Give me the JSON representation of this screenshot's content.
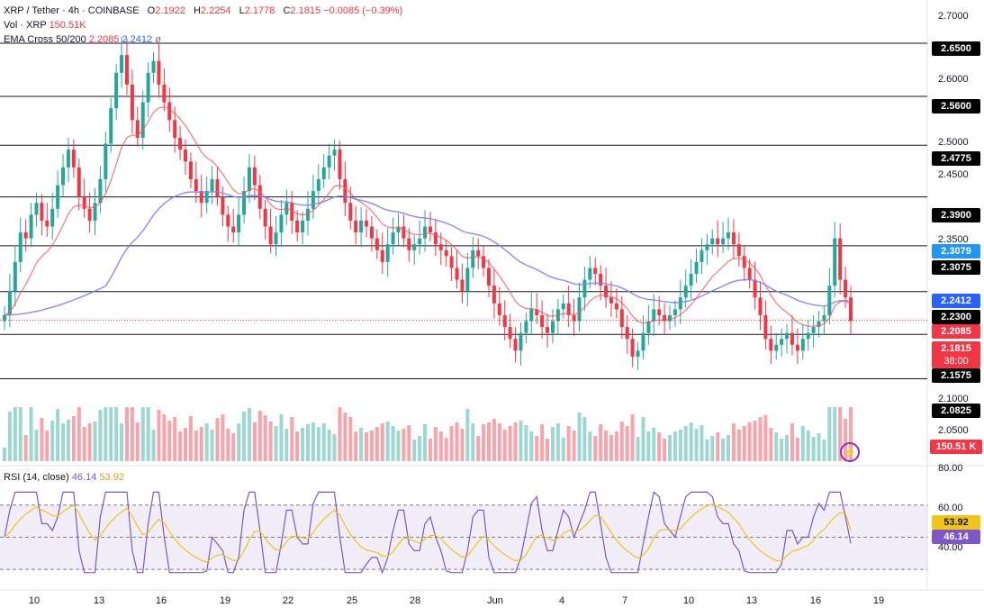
{
  "header": {
    "symbol": "XRP / Tether · 4h · COINBASE",
    "open_label": "O",
    "open": "2.1922",
    "high_label": "H",
    "high": "2.2254",
    "low_label": "L",
    "low": "2.1778",
    "close_label": "C",
    "close": "2.1815",
    "change": "−0.0085 (−0.39%)",
    "vol_label": "Vol · XRP",
    "vol_value": "150.51K",
    "ema_label": "EMA Cross 50/200",
    "ema50": "2.2085",
    "ema200": "2.2412",
    "ema_extra": "ø"
  },
  "rsi_header": {
    "label": "RSI (14, close)",
    "rsi": "46.14",
    "ma": "53.92"
  },
  "price_axis": [
    "2.7000",
    "2.6000",
    "2.5000",
    "2.4500",
    "2.3500",
    "2.1000",
    "2.0500"
  ],
  "rsi_axis": [
    "80.00",
    "60.00",
    "40.00"
  ],
  "x_axis": [
    "10",
    "13",
    "16",
    "19",
    "22",
    "25",
    "28",
    "Jun",
    "4",
    "7",
    "10",
    "13",
    "16",
    "19"
  ],
  "levels": [
    {
      "value": "2.6500",
      "price": 2.65
    },
    {
      "value": "2.5600",
      "price": 2.56
    },
    {
      "value": "2.4775",
      "price": 2.4775
    },
    {
      "value": "2.3900",
      "price": 2.39
    },
    {
      "value": "2.3075",
      "price": 2.3075
    },
    {
      "value": "2.2300",
      "price": 2.23
    },
    {
      "value": "2.1575",
      "price": 2.1575
    },
    {
      "value": "2.0825",
      "price": 2.0825
    }
  ],
  "tags": {
    "ema_high": "2.3079",
    "ema200": "2.2412",
    "ema50": "2.2085",
    "last_price": "2.1815",
    "countdown": "38:00",
    "volume": "150.51 K",
    "rsi": "46.14",
    "rsi_ma": "53.92"
  },
  "colors": {
    "up": "#26a69a",
    "down": "#f23645",
    "ema50": "#f7525f",
    "ema200": "#7e7ef2",
    "rsi": "#7e57c2",
    "rsi_ma": "#f0c419"
  },
  "chart_data": {
    "type": "candlestick",
    "timeframe": "4h",
    "ylim": [
      2.03,
      2.72
    ],
    "closes": [
      2.19,
      2.23,
      2.28,
      2.33,
      2.32,
      2.36,
      2.38,
      2.35,
      2.34,
      2.37,
      2.41,
      2.44,
      2.47,
      2.44,
      2.39,
      2.37,
      2.35,
      2.38,
      2.42,
      2.48,
      2.54,
      2.6,
      2.63,
      2.58,
      2.52,
      2.49,
      2.55,
      2.6,
      2.62,
      2.58,
      2.55,
      2.52,
      2.49,
      2.47,
      2.45,
      2.42,
      2.4,
      2.38,
      2.4,
      2.42,
      2.39,
      2.36,
      2.34,
      2.33,
      2.36,
      2.4,
      2.44,
      2.41,
      2.37,
      2.34,
      2.31,
      2.33,
      2.36,
      2.38,
      2.35,
      2.33,
      2.35,
      2.37,
      2.4,
      2.42,
      2.44,
      2.46,
      2.47,
      2.42,
      2.38,
      2.35,
      2.33,
      2.35,
      2.34,
      2.32,
      2.3,
      2.28,
      2.31,
      2.33,
      2.34,
      2.32,
      2.3,
      2.31,
      2.32,
      2.34,
      2.33,
      2.31,
      2.3,
      2.29,
      2.27,
      2.25,
      2.23,
      2.27,
      2.3,
      2.29,
      2.27,
      2.24,
      2.21,
      2.19,
      2.17,
      2.15,
      2.13,
      2.16,
      2.18,
      2.2,
      2.19,
      2.17,
      2.16,
      2.18,
      2.2,
      2.21,
      2.19,
      2.18,
      2.22,
      2.25,
      2.27,
      2.26,
      2.24,
      2.22,
      2.21,
      2.2,
      2.17,
      2.15,
      2.12,
      2.13,
      2.16,
      2.18,
      2.2,
      2.19,
      2.18,
      2.19,
      2.2,
      2.22,
      2.24,
      2.26,
      2.28,
      2.3,
      2.31,
      2.32,
      2.31,
      2.32,
      2.33,
      2.31,
      2.29,
      2.27,
      2.25,
      2.22,
      2.19,
      2.15,
      2.13,
      2.14,
      2.15,
      2.16,
      2.14,
      2.13,
      2.15,
      2.16,
      2.17,
      2.18,
      2.19,
      2.24,
      2.32,
      2.25,
      2.22,
      2.18
    ],
    "ema50_end": 2.2085,
    "ema200_end": 2.2412,
    "rsi_end": 46.14,
    "rsi_ma_end": 53.92,
    "rsi_range": [
      20,
      90
    ],
    "rsi_band": [
      30,
      70
    ]
  }
}
